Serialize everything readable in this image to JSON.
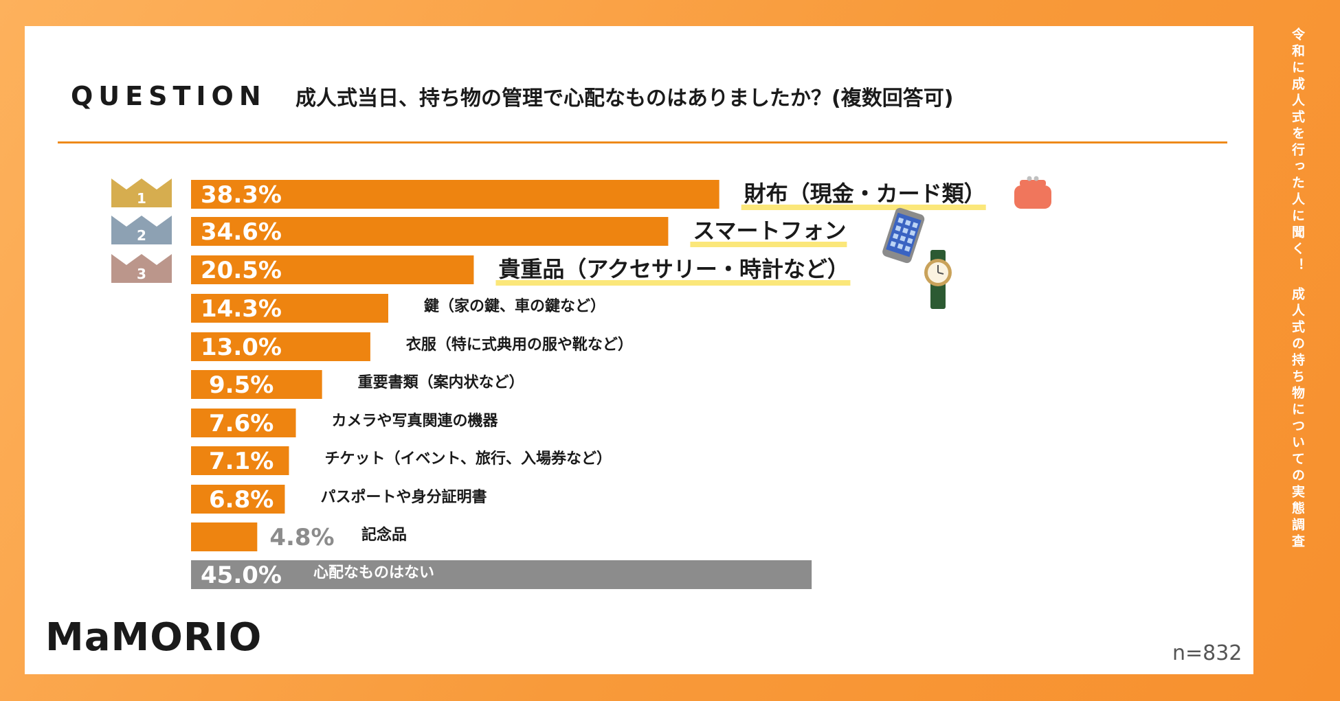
{
  "question": {
    "label": "QUESTION",
    "text": "成人式当日、持ち物の管理で心配なものはありましたか？(複数回答可)"
  },
  "side_caption": {
    "line1": "令和に成人式を行った人に聞く！",
    "line2": "成人式の持ち物についての実態調査"
  },
  "brand": {
    "logo_text": "MaMORIO"
  },
  "sample_size": "n=832",
  "colors": {
    "bar": "#ee8410",
    "bar_none": "#8c8c8c",
    "highlight": "#fbe77a",
    "crown_1": "#d6ad4f",
    "crown_2": "#8da1b3",
    "crown_3": "#bb968b"
  },
  "chart_data": {
    "type": "bar",
    "orientation": "horizontal",
    "value_unit": "%",
    "xlim": [
      0,
      100
    ],
    "categories": [
      "財布（現金・カード類）",
      "スマートフォン",
      "貴重品（アクセサリー・時計など）",
      "鍵（家の鍵、車の鍵など）",
      "衣服（特に式典用の服や靴など）",
      "重要書類（案内状など）",
      "カメラや写真関連の機器",
      "チケット（イベント、旅行、入場券など）",
      "パスポートや身分証明書",
      "記念品",
      "心配なものはない"
    ],
    "values": [
      38.3,
      34.6,
      20.5,
      14.3,
      13.0,
      9.5,
      7.6,
      7.1,
      6.8,
      4.8,
      45.0
    ],
    "value_labels": [
      "38.3%",
      "34.6%",
      "20.5%",
      "14.3%",
      "13.0%",
      "9.5%",
      "7.6%",
      "7.1%",
      "6.8%",
      "4.8%",
      "45.0%"
    ],
    "ranks": [
      "1",
      "2",
      "3"
    ],
    "icons": [
      "wallet-icon",
      "smartphone-icon",
      "wristwatch-icon"
    ]
  }
}
